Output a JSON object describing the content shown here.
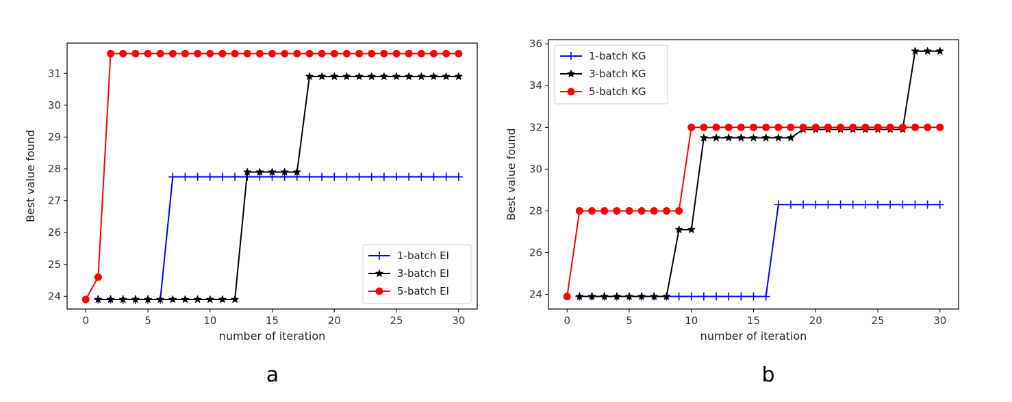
{
  "colors": {
    "1-batch": "#0000ff",
    "3-batch": "#000000",
    "5-batch": "#ff0000",
    "frame": "#000000",
    "legend_border": "#cccccc"
  },
  "chart_data": [
    {
      "type": "line",
      "panel_label": "a",
      "xlabel": "number of iteration",
      "ylabel": "Best value found",
      "xlim": [
        -1.5,
        31.5
      ],
      "ylim": [
        23.6,
        31.95
      ],
      "xticks": [
        0,
        5,
        10,
        15,
        20,
        25,
        30
      ],
      "yticks": [
        24,
        25,
        26,
        27,
        28,
        29,
        30,
        31
      ],
      "grid": false,
      "legend_position": "lower-right",
      "series": [
        {
          "name": "1-batch EI",
          "color_key": "1-batch",
          "marker": "plus-icon",
          "x": [
            1,
            2,
            3,
            4,
            5,
            6,
            7,
            8,
            9,
            10,
            11,
            12,
            13,
            14,
            15,
            16,
            17,
            18,
            19,
            20,
            21,
            22,
            23,
            24,
            25,
            26,
            27,
            28,
            29,
            30
          ],
          "y": [
            23.9,
            23.9,
            23.9,
            23.9,
            23.9,
            23.9,
            27.75,
            27.75,
            27.75,
            27.75,
            27.75,
            27.75,
            27.75,
            27.75,
            27.75,
            27.75,
            27.75,
            27.75,
            27.75,
            27.75,
            27.75,
            27.75,
            27.75,
            27.75,
            27.75,
            27.75,
            27.75,
            27.75,
            27.75,
            27.75
          ]
        },
        {
          "name": "3-batch EI",
          "color_key": "3-batch",
          "marker": "star-icon",
          "x": [
            1,
            2,
            3,
            4,
            5,
            6,
            7,
            8,
            9,
            10,
            11,
            12,
            13,
            14,
            15,
            16,
            17,
            18,
            19,
            20,
            21,
            22,
            23,
            24,
            25,
            26,
            27,
            28,
            29,
            30
          ],
          "y": [
            23.9,
            23.9,
            23.9,
            23.9,
            23.9,
            23.9,
            23.9,
            23.9,
            23.9,
            23.9,
            23.9,
            23.9,
            27.9,
            27.9,
            27.9,
            27.9,
            27.9,
            30.9,
            30.9,
            30.9,
            30.9,
            30.9,
            30.9,
            30.9,
            30.9,
            30.9,
            30.9,
            30.9,
            30.9,
            30.9
          ]
        },
        {
          "name": "5-batch EI",
          "color_key": "5-batch",
          "marker": "circle-icon",
          "x": [
            0,
            1,
            2,
            3,
            4,
            5,
            6,
            7,
            8,
            9,
            10,
            11,
            12,
            13,
            14,
            15,
            16,
            17,
            18,
            19,
            20,
            21,
            22,
            23,
            24,
            25,
            26,
            27,
            28,
            29,
            30
          ],
          "y": [
            23.9,
            24.6,
            31.62,
            31.62,
            31.62,
            31.62,
            31.62,
            31.62,
            31.62,
            31.62,
            31.62,
            31.62,
            31.62,
            31.62,
            31.62,
            31.62,
            31.62,
            31.62,
            31.62,
            31.62,
            31.62,
            31.62,
            31.62,
            31.62,
            31.62,
            31.62,
            31.62,
            31.62,
            31.62,
            31.62,
            31.62
          ]
        }
      ]
    },
    {
      "type": "line",
      "panel_label": "b",
      "xlabel": "number of iteration",
      "ylabel": "Best value found",
      "xlim": [
        -1.5,
        31.5
      ],
      "ylim": [
        23.3,
        36.2
      ],
      "xticks": [
        0,
        5,
        10,
        15,
        20,
        25,
        30
      ],
      "yticks": [
        24,
        26,
        28,
        30,
        32,
        34,
        36
      ],
      "grid": false,
      "legend_position": "upper-left",
      "series": [
        {
          "name": "1-batch KG",
          "color_key": "1-batch",
          "marker": "plus-icon",
          "x": [
            1,
            2,
            3,
            4,
            5,
            6,
            7,
            8,
            9,
            10,
            11,
            12,
            13,
            14,
            15,
            16,
            17,
            18,
            19,
            20,
            21,
            22,
            23,
            24,
            25,
            26,
            27,
            28,
            29,
            30
          ],
          "y": [
            23.9,
            23.9,
            23.9,
            23.9,
            23.9,
            23.9,
            23.9,
            23.9,
            23.9,
            23.9,
            23.9,
            23.9,
            23.9,
            23.9,
            23.9,
            23.9,
            28.3,
            28.3,
            28.3,
            28.3,
            28.3,
            28.3,
            28.3,
            28.3,
            28.3,
            28.3,
            28.3,
            28.3,
            28.3,
            28.3
          ]
        },
        {
          "name": "3-batch KG",
          "color_key": "3-batch",
          "marker": "star-icon",
          "x": [
            1,
            2,
            3,
            4,
            5,
            6,
            7,
            8,
            9,
            10,
            11,
            12,
            13,
            14,
            15,
            16,
            17,
            18,
            19,
            20,
            21,
            22,
            23,
            24,
            25,
            26,
            27,
            28,
            29,
            30
          ],
          "y": [
            23.9,
            23.9,
            23.9,
            23.9,
            23.9,
            23.9,
            23.9,
            23.9,
            27.1,
            27.1,
            31.5,
            31.5,
            31.5,
            31.5,
            31.5,
            31.5,
            31.5,
            31.5,
            31.9,
            31.9,
            31.9,
            31.9,
            31.9,
            31.9,
            31.9,
            31.9,
            31.9,
            35.65,
            35.65,
            35.65
          ]
        },
        {
          "name": "5-batch KG",
          "color_key": "5-batch",
          "marker": "circle-icon",
          "x": [
            0,
            1,
            2,
            3,
            4,
            5,
            6,
            7,
            8,
            9,
            10,
            11,
            12,
            13,
            14,
            15,
            16,
            17,
            18,
            19,
            20,
            21,
            22,
            23,
            24,
            25,
            26,
            27,
            28,
            29,
            30
          ],
          "y": [
            23.9,
            28,
            28,
            28,
            28,
            28,
            28,
            28,
            28,
            28,
            32,
            32,
            32,
            32,
            32,
            32,
            32,
            32,
            32,
            32,
            32,
            32,
            32,
            32,
            32,
            32,
            32,
            32,
            32,
            32,
            32
          ]
        }
      ]
    }
  ]
}
